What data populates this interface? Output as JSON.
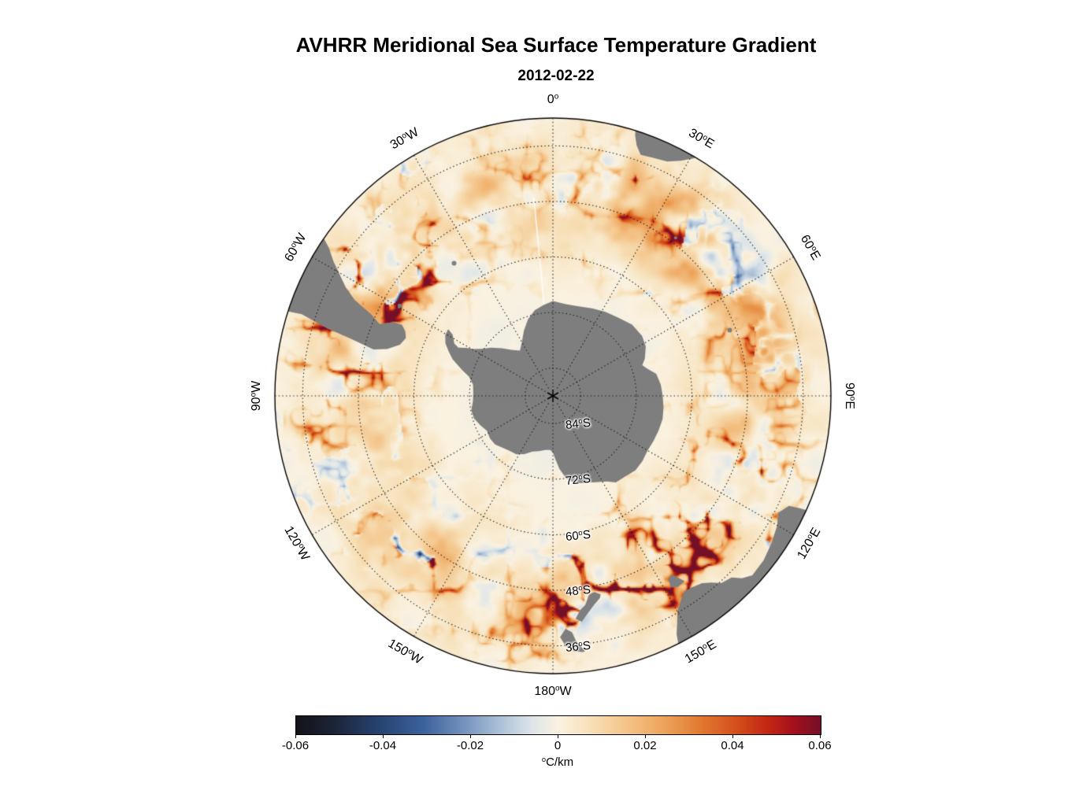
{
  "title": "AVHRR Meridional Sea Surface Temperature Gradient",
  "subtitle": "2012-02-22",
  "chart_data": {
    "type": "heatmap",
    "title": "AVHRR Meridional Sea Surface Temperature Gradient",
    "date": "2012-02-22",
    "projection": "south-polar azimuthal",
    "variable": "meridional sea surface temperature gradient",
    "units": "°C/km",
    "value_range": [
      -0.06,
      0.06
    ],
    "colorbar": {
      "label": "°C/km",
      "ticks": [
        "-0.06",
        "-0.04",
        "-0.02",
        "0",
        "0.02",
        "0.04",
        "0.06"
      ],
      "values": [
        -0.06,
        -0.04,
        -0.02,
        0,
        0.02,
        0.04,
        0.06
      ]
    },
    "lon_labels": [
      {
        "text": "0°",
        "lon": 0
      },
      {
        "text": "30°E",
        "lon": 30
      },
      {
        "text": "60°E",
        "lon": 60
      },
      {
        "text": "90°E",
        "lon": 90
      },
      {
        "text": "120°E",
        "lon": 120
      },
      {
        "text": "150°E",
        "lon": 150
      },
      {
        "text": "180°W",
        "lon": 180
      },
      {
        "text": "150°W",
        "lon": -150
      },
      {
        "text": "120°W",
        "lon": -120
      },
      {
        "text": "90°W",
        "lon": -90
      },
      {
        "text": "60°W",
        "lon": -60
      },
      {
        "text": "30°W",
        "lon": -30
      }
    ],
    "lat_labels": [
      {
        "text": "84°S",
        "lat": -84
      },
      {
        "text": "72°S",
        "lat": -72
      },
      {
        "text": "60°S",
        "lat": -60
      },
      {
        "text": "48°S",
        "lat": -48
      },
      {
        "text": "36°S",
        "lat": -36
      }
    ],
    "pole_marker": "asterisk",
    "graticule_style": "dotted",
    "land_color": "#7e7e7e",
    "background_color": "#ffffff",
    "land_masses": [
      "Antarctica",
      "South America",
      "Africa",
      "Australia",
      "Tasmania",
      "New Zealand"
    ],
    "colormap_stops": [
      {
        "t": 0.0,
        "color": "#131318"
      },
      {
        "t": 0.07,
        "color": "#1c2336"
      },
      {
        "t": 0.15,
        "color": "#25406b"
      },
      {
        "t": 0.24,
        "color": "#3a619b"
      },
      {
        "t": 0.32,
        "color": "#7492bd"
      },
      {
        "t": 0.39,
        "color": "#adc2d8"
      },
      {
        "t": 0.45,
        "color": "#dde5e9"
      },
      {
        "t": 0.5,
        "color": "#faf2e1"
      },
      {
        "t": 0.56,
        "color": "#f7e0b8"
      },
      {
        "t": 0.63,
        "color": "#f4c489"
      },
      {
        "t": 0.7,
        "color": "#eda45b"
      },
      {
        "t": 0.77,
        "color": "#e27a31"
      },
      {
        "t": 0.84,
        "color": "#d44e1a"
      },
      {
        "t": 0.9,
        "color": "#c22613"
      },
      {
        "t": 0.95,
        "color": "#a30f1d"
      },
      {
        "t": 1.0,
        "color": "#731027"
      }
    ]
  }
}
